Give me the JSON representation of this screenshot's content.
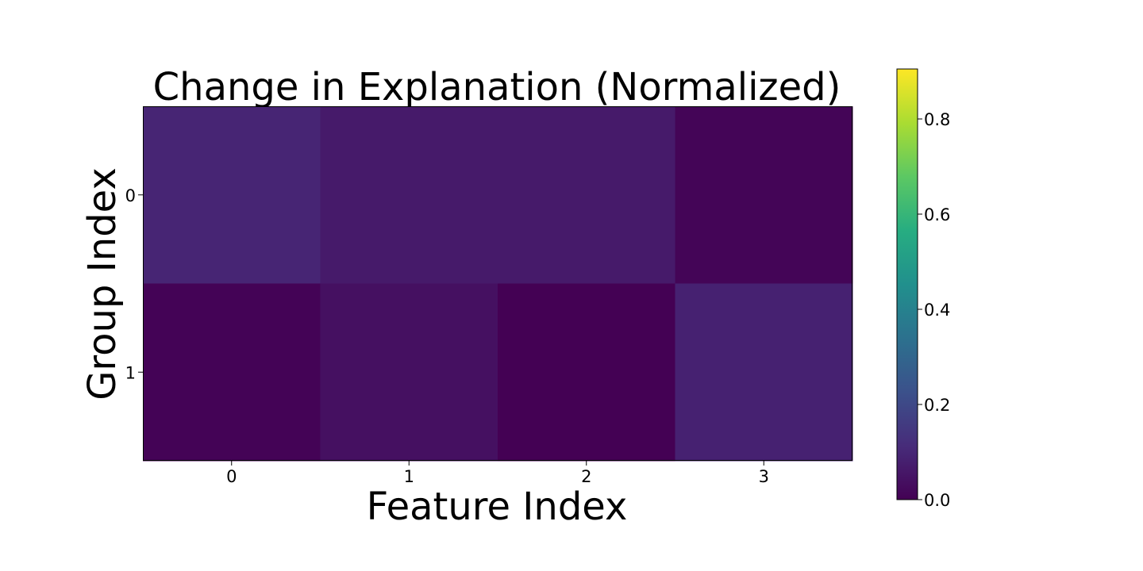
{
  "chart_data": {
    "type": "heatmap",
    "title": "Change in Explanation (Normalized)",
    "xlabel": "Feature Index",
    "ylabel": "Group Index",
    "x_categories": [
      "0",
      "1",
      "2",
      "3"
    ],
    "y_categories": [
      "0",
      "1"
    ],
    "values": [
      [
        0.095,
        0.065,
        0.065,
        0.01
      ],
      [
        0.005,
        0.04,
        0.0,
        0.085
      ]
    ],
    "colormap": "viridis",
    "colorbar": {
      "range": [
        0.0,
        0.905
      ],
      "ticks": [
        0.0,
        0.2,
        0.4,
        0.6,
        0.8
      ],
      "tick_labels": [
        "0.0",
        "0.2",
        "0.4",
        "0.6",
        "0.8"
      ]
    },
    "grid": false,
    "legend": "colorbar-right"
  }
}
